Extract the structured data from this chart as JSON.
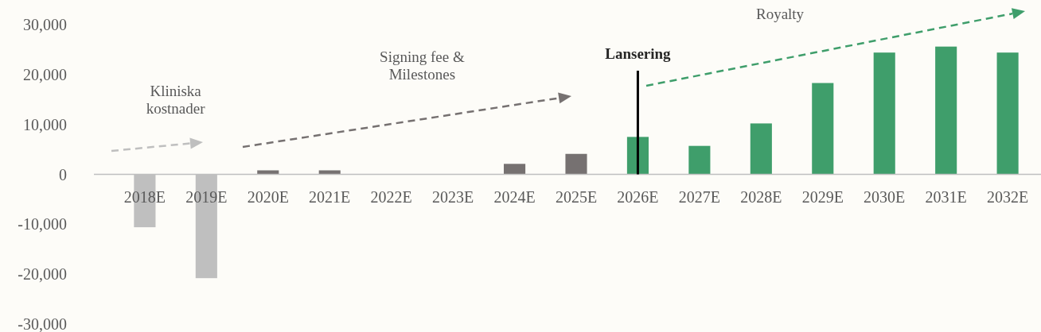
{
  "chart_data": {
    "type": "bar",
    "categories": [
      "2018E",
      "2019E",
      "2020E",
      "2021E",
      "2022E",
      "2023E",
      "2024E",
      "2025E",
      "2026E",
      "2027E",
      "2028E",
      "2029E",
      "2030E",
      "2031E",
      "2032E"
    ],
    "values": [
      -10600,
      -20800,
      800,
      800,
      0,
      0,
      2100,
      4100,
      7500,
      5700,
      10200,
      18300,
      24400,
      25600,
      24400
    ],
    "colors": [
      "#bfbfbf",
      "#bfbfbf",
      "#767171",
      "#767171",
      "#767171",
      "#767171",
      "#767171",
      "#767171",
      "#3f9e6b",
      "#3f9e6b",
      "#3f9e6b",
      "#3f9e6b",
      "#3f9e6b",
      "#3f9e6b",
      "#3f9e6b"
    ],
    "ylim": [
      -30000,
      30000
    ],
    "yticks": [
      {
        "value": -30000,
        "label": "-30,000"
      },
      {
        "value": -20000,
        "label": "-20,000"
      },
      {
        "value": -10000,
        "label": "-10,000"
      },
      0,
      {
        "value": 10000,
        "label": "10,000"
      },
      {
        "value": 20000,
        "label": "20,000"
      },
      {
        "value": 30000,
        "label": "30,000"
      }
    ],
    "ref_lines": [
      {
        "axis": "x",
        "value": "2026E",
        "label": "Lansering",
        "color": "#000000"
      }
    ],
    "annotations": [
      "Kliniska kostnader",
      "Signing fee & Milestones",
      "Royalty"
    ]
  }
}
